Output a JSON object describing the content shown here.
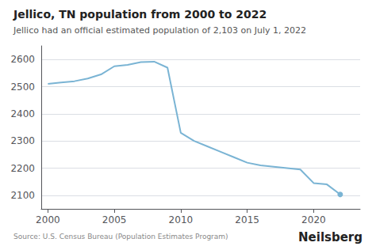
{
  "chart_data": {
    "type": "line",
    "title": "Jellico, TN population from 2000 to 2022",
    "subtitle": "Jellico had an official estimated population of 2,103 on July 1, 2022",
    "annotations": [
      "Source: U.S. Census Bureau (Population Estimates Program)",
      "Neilsberg"
    ],
    "x": [
      2000,
      2001,
      2002,
      2003,
      2004,
      2005,
      2006,
      2007,
      2008,
      2009,
      2010,
      2011,
      2012,
      2013,
      2014,
      2015,
      2016,
      2017,
      2018,
      2019,
      2020,
      2021,
      2022
    ],
    "values": [
      2510,
      2515,
      2520,
      2530,
      2545,
      2575,
      2580,
      2590,
      2592,
      2570,
      2330,
      2300,
      2280,
      2260,
      2240,
      2220,
      2210,
      2205,
      2200,
      2195,
      2145,
      2140,
      2103
    ],
    "color": "#7ab4d4",
    "xlim": [
      1999.5,
      2023.5
    ],
    "xticks": [
      2000,
      2005,
      2010,
      2015,
      2020
    ],
    "ylim": [
      2050,
      2650
    ],
    "yticks": [
      2100,
      2200,
      2300,
      2400,
      2500,
      2600
    ],
    "grid": true
  }
}
